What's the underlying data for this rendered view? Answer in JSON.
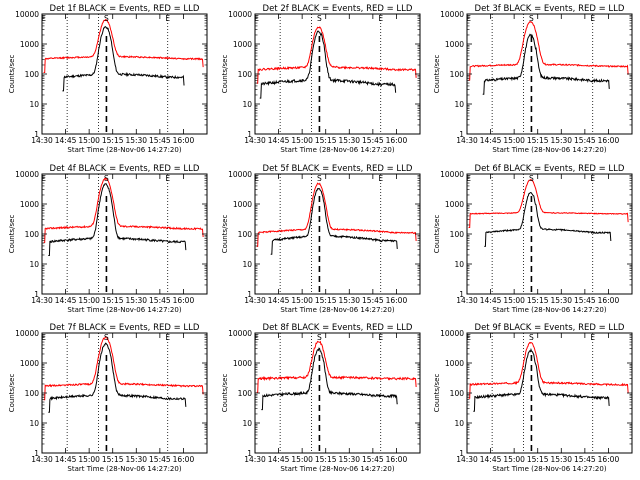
{
  "page": {
    "background": "#ffffff"
  },
  "colors": {
    "events": "#000000",
    "lld": "#ff0000",
    "axes": "#000000"
  },
  "chart_data": [
    {
      "type": "line",
      "title": "Det 1f BLACK = Events, RED = LLD",
      "xlabel": "Start Time (28-Nov-06 14:27:20)",
      "ylabel": "Counts/sec",
      "yscale": "log",
      "ylim": [
        1,
        10000
      ],
      "xlim": [
        870,
        975
      ],
      "xtick_labels": [
        "14:30",
        "14:45",
        "15:00",
        "15:15",
        "15:30",
        "15:45",
        "16:00"
      ],
      "xtick_values": [
        870,
        885,
        900,
        915,
        930,
        945,
        960
      ],
      "ytick_labels": [
        "1",
        "10",
        "100",
        "1000",
        "10000"
      ],
      "ytick_values": [
        1,
        10,
        100,
        1000,
        10000
      ],
      "dotted_lines_x": [
        886,
        906,
        950
      ],
      "dashed_line_x": 911,
      "marker_labels": [
        {
          "text": "S",
          "x": 911
        },
        {
          "text": "E",
          "x": 950
        },
        {
          "text": "E",
          "x": 871
        }
      ],
      "series": [
        {
          "name": "Events",
          "color": "#000000",
          "start": 883,
          "end": 961,
          "base": 78,
          "bump": 1.25,
          "peak": 3600,
          "peak_x": 910.5,
          "peak_w": 3.2,
          "spikes": [
            [
              912.4,
              250
            ],
            [
              913.8,
              200
            ]
          ],
          "decay": 0.45,
          "noise": 0.08,
          "seed": 11
        },
        {
          "name": "LLD",
          "color": "#ff0000",
          "start": 871,
          "end": 973,
          "base": 320,
          "bump": 1.18,
          "peak": 6000,
          "peak_x": 910.5,
          "peak_w": 3.6,
          "spikes": [],
          "decay": 0.12,
          "noise": 0.05,
          "seed": 12
        }
      ]
    },
    {
      "type": "line",
      "title": "Det 2f BLACK = Events, RED = LLD",
      "xlabel": "Start Time (28-Nov-06 14:27:20)",
      "ylabel": "Counts/sec",
      "yscale": "log",
      "ylim": [
        1,
        10000
      ],
      "xlim": [
        870,
        975
      ],
      "xtick_labels": [
        "14:30",
        "14:45",
        "15:00",
        "15:15",
        "15:30",
        "15:45",
        "16:00"
      ],
      "xtick_values": [
        870,
        885,
        900,
        915,
        930,
        945,
        960
      ],
      "ytick_labels": [
        "1",
        "10",
        "100",
        "1000",
        "10000"
      ],
      "ytick_values": [
        1,
        10,
        100,
        1000,
        10000
      ],
      "dotted_lines_x": [
        886,
        906,
        950
      ],
      "dashed_line_x": 911,
      "marker_labels": [
        {
          "text": "S",
          "x": 911
        },
        {
          "text": "E",
          "x": 950
        },
        {
          "text": "E",
          "x": 871
        }
      ],
      "series": [
        {
          "name": "Events",
          "color": "#000000",
          "start": 873,
          "end": 960,
          "base": 45,
          "bump": 1.4,
          "peak": 2600,
          "peak_x": 910.5,
          "peak_w": 3.0,
          "spikes": [
            [
              912.5,
              180
            ],
            [
              914,
              160
            ]
          ],
          "decay": 0.6,
          "noise": 0.1,
          "seed": 21
        },
        {
          "name": "LLD",
          "color": "#ff0000",
          "start": 871,
          "end": 973,
          "base": 140,
          "bump": 1.2,
          "peak": 3600,
          "peak_x": 910.5,
          "peak_w": 3.4,
          "spikes": [],
          "decay": 0.15,
          "noise": 0.07,
          "seed": 22
        }
      ]
    },
    {
      "type": "line",
      "title": "Det 3f BLACK = Events, RED = LLD",
      "xlabel": "Start Time (28-Nov-06 14:27:20)",
      "ylabel": "Counts/sec",
      "yscale": "log",
      "ylim": [
        1,
        10000
      ],
      "xlim": [
        870,
        975
      ],
      "xtick_labels": [
        "14:30",
        "14:45",
        "15:00",
        "15:15",
        "15:30",
        "15:45",
        "16:00"
      ],
      "xtick_values": [
        870,
        885,
        900,
        915,
        930,
        945,
        960
      ],
      "ytick_labels": [
        "1",
        "10",
        "100",
        "1000",
        "10000"
      ],
      "ytick_values": [
        1,
        10,
        100,
        1000,
        10000
      ],
      "dotted_lines_x": [
        886,
        906,
        950
      ],
      "dashed_line_x": 911,
      "marker_labels": [
        {
          "text": "S",
          "x": 911
        },
        {
          "text": "E",
          "x": 950
        },
        {
          "text": "E",
          "x": 871
        }
      ],
      "series": [
        {
          "name": "Events",
          "color": "#000000",
          "start": 880,
          "end": 961,
          "base": 60,
          "bump": 1.25,
          "peak": 1900,
          "peak_x": 910.5,
          "peak_w": 3.0,
          "spikes": [
            [
              912.5,
              150
            ],
            [
              914,
              130
            ]
          ],
          "decay": 0.55,
          "noise": 0.09,
          "seed": 31
        },
        {
          "name": "LLD",
          "color": "#ff0000",
          "start": 871,
          "end": 973,
          "base": 180,
          "bump": 1.15,
          "peak": 5400,
          "peak_x": 910.5,
          "peak_w": 3.6,
          "spikes": [],
          "decay": 0.15,
          "noise": 0.05,
          "seed": 32
        }
      ]
    },
    {
      "type": "line",
      "title": "Det 4f BLACK = Events, RED = LLD",
      "xlabel": "Start Time (28-Nov-06 14:27:20)",
      "ylabel": "Counts/sec",
      "yscale": "log",
      "ylim": [
        1,
        10000
      ],
      "xlim": [
        870,
        975
      ],
      "xtick_labels": [
        "14:30",
        "14:45",
        "15:00",
        "15:15",
        "15:30",
        "15:45",
        "16:00"
      ],
      "xtick_values": [
        870,
        885,
        900,
        915,
        930,
        945,
        960
      ],
      "ytick_labels": [
        "1",
        "10",
        "100",
        "1000",
        "10000"
      ],
      "ytick_values": [
        1,
        10,
        100,
        1000,
        10000
      ],
      "dotted_lines_x": [
        886,
        906,
        950
      ],
      "dashed_line_x": 911,
      "marker_labels": [
        {
          "text": "S",
          "x": 911
        },
        {
          "text": "E",
          "x": 950
        },
        {
          "text": "E",
          "x": 871
        }
      ],
      "series": [
        {
          "name": "Events",
          "color": "#000000",
          "start": 874,
          "end": 962,
          "base": 55,
          "bump": 1.3,
          "peak": 4500,
          "peak_x": 910.5,
          "peak_w": 3.2,
          "spikes": [
            [
              912.4,
              220
            ],
            [
              913.8,
              180
            ]
          ],
          "decay": 0.5,
          "noise": 0.08,
          "seed": 41
        },
        {
          "name": "LLD",
          "color": "#ff0000",
          "start": 871,
          "end": 973,
          "base": 150,
          "bump": 1.2,
          "peak": 6800,
          "peak_x": 910.5,
          "peak_w": 3.6,
          "spikes": [],
          "decay": 0.15,
          "noise": 0.06,
          "seed": 42
        }
      ]
    },
    {
      "type": "line",
      "title": "Det 5f BLACK = Events, RED = LLD",
      "xlabel": "Start Time (28-Nov-06 14:27:20)",
      "ylabel": "Counts/sec",
      "yscale": "log",
      "ylim": [
        1,
        10000
      ],
      "xlim": [
        870,
        975
      ],
      "xtick_labels": [
        "14:30",
        "14:45",
        "15:00",
        "15:15",
        "15:30",
        "15:45",
        "16:00"
      ],
      "xtick_values": [
        870,
        885,
        900,
        915,
        930,
        945,
        960
      ],
      "ytick_labels": [
        "1",
        "10",
        "100",
        "1000",
        "10000"
      ],
      "ytick_values": [
        1,
        10,
        100,
        1000,
        10000
      ],
      "dotted_lines_x": [
        886,
        906,
        950
      ],
      "dashed_line_x": 911,
      "marker_labels": [
        {
          "text": "S",
          "x": 911
        },
        {
          "text": "E",
          "x": 950
        },
        {
          "text": "E",
          "x": 871
        }
      ],
      "series": [
        {
          "name": "Events",
          "color": "#000000",
          "start": 880,
          "end": 961,
          "base": 60,
          "bump": 1.4,
          "peak": 3300,
          "peak_x": 910.5,
          "peak_w": 3.0,
          "spikes": [
            [
              912.5,
              160
            ],
            [
              914,
              150
            ]
          ],
          "decay": 0.55,
          "noise": 0.07,
          "seed": 51
        },
        {
          "name": "LLD",
          "color": "#ff0000",
          "start": 871,
          "end": 973,
          "base": 110,
          "bump": 1.3,
          "peak": 4700,
          "peak_x": 910.5,
          "peak_w": 3.4,
          "spikes": [],
          "decay": 0.12,
          "noise": 0.05,
          "seed": 52
        }
      ]
    },
    {
      "type": "line",
      "title": "Det 6f BLACK = Events, RED = LLD",
      "xlabel": "Start Time (28-Nov-06 14:27:20)",
      "ylabel": "Counts/sec",
      "yscale": "log",
      "ylim": [
        1,
        10000
      ],
      "xlim": [
        870,
        975
      ],
      "xtick_labels": [
        "14:30",
        "14:45",
        "15:00",
        "15:15",
        "15:30",
        "15:45",
        "16:00"
      ],
      "xtick_values": [
        870,
        885,
        900,
        915,
        930,
        945,
        960
      ],
      "ytick_labels": [
        "1",
        "10",
        "100",
        "1000",
        "10000"
      ],
      "ytick_values": [
        1,
        10,
        100,
        1000,
        10000
      ],
      "dotted_lines_x": [
        886,
        906,
        950
      ],
      "dashed_line_x": 911,
      "marker_labels": [
        {
          "text": "S",
          "x": 911
        },
        {
          "text": "E",
          "x": 950
        },
        {
          "text": "E",
          "x": 871
        }
      ],
      "series": [
        {
          "name": "Events",
          "color": "#000000",
          "start": 881,
          "end": 962,
          "base": 110,
          "bump": 1.3,
          "peak": 2300,
          "peak_x": 910.5,
          "peak_w": 3.0,
          "spikes": [
            [
              912.5,
              200
            ],
            [
              914,
              170
            ]
          ],
          "decay": 0.6,
          "noise": 0.05,
          "seed": 61
        },
        {
          "name": "LLD",
          "color": "#ff0000",
          "start": 871,
          "end": 973,
          "base": 470,
          "bump": 1.08,
          "peak": 6000,
          "peak_x": 910.5,
          "peak_w": 3.6,
          "spikes": [],
          "decay": 0.1,
          "noise": 0.03,
          "seed": 62
        }
      ]
    },
    {
      "type": "line",
      "title": "Det 7f BLACK = Events, RED = LLD",
      "xlabel": "Start Time (28-Nov-06 14:27:20)",
      "ylabel": "Counts/sec",
      "yscale": "log",
      "ylim": [
        1,
        10000
      ],
      "xlim": [
        870,
        975
      ],
      "xtick_labels": [
        "14:30",
        "14:45",
        "15:00",
        "15:15",
        "15:30",
        "15:45",
        "16:00"
      ],
      "xtick_values": [
        870,
        885,
        900,
        915,
        930,
        945,
        960
      ],
      "ytick_labels": [
        "1",
        "10",
        "100",
        "1000",
        "10000"
      ],
      "ytick_values": [
        1,
        10,
        100,
        1000,
        10000
      ],
      "dotted_lines_x": [
        886,
        906,
        950
      ],
      "dashed_line_x": 911,
      "marker_labels": [
        {
          "text": "S",
          "x": 911
        },
        {
          "text": "E",
          "x": 950
        },
        {
          "text": "E",
          "x": 871
        }
      ],
      "series": [
        {
          "name": "Events",
          "color": "#000000",
          "start": 874,
          "end": 962,
          "base": 65,
          "bump": 1.3,
          "peak": 4200,
          "peak_x": 910.5,
          "peak_w": 3.2,
          "spikes": [
            [
              912.4,
              220
            ],
            [
              913.8,
              190
            ]
          ],
          "decay": 0.5,
          "noise": 0.08,
          "seed": 71
        },
        {
          "name": "LLD",
          "color": "#ff0000",
          "start": 871,
          "end": 973,
          "base": 170,
          "bump": 1.18,
          "peak": 7000,
          "peak_x": 910.5,
          "peak_w": 3.6,
          "spikes": [],
          "decay": 0.15,
          "noise": 0.06,
          "seed": 72
        }
      ]
    },
    {
      "type": "line",
      "title": "Det 8f BLACK = Events, RED = LLD",
      "xlabel": "Start Time (28-Nov-06 14:27:20)",
      "ylabel": "Counts/sec",
      "yscale": "log",
      "ylim": [
        1,
        10000
      ],
      "xlim": [
        870,
        975
      ],
      "xtick_labels": [
        "14:30",
        "14:45",
        "15:00",
        "15:15",
        "15:30",
        "15:45",
        "16:00"
      ],
      "xtick_values": [
        870,
        885,
        900,
        915,
        930,
        945,
        960
      ],
      "ytick_labels": [
        "1",
        "10",
        "100",
        "1000",
        "10000"
      ],
      "ytick_values": [
        1,
        10,
        100,
        1000,
        10000
      ],
      "dotted_lines_x": [
        886,
        906,
        950
      ],
      "dashed_line_x": 911,
      "marker_labels": [
        {
          "text": "S",
          "x": 911
        },
        {
          "text": "E",
          "x": 950
        },
        {
          "text": "E",
          "x": 871
        }
      ],
      "series": [
        {
          "name": "Events",
          "color": "#000000",
          "start": 874,
          "end": 961,
          "base": 80,
          "bump": 1.25,
          "peak": 2800,
          "peak_x": 910.5,
          "peak_w": 3.0,
          "spikes": [
            [
              912.5,
              180
            ],
            [
              914,
              150
            ]
          ],
          "decay": 0.55,
          "noise": 0.09,
          "seed": 81
        },
        {
          "name": "LLD",
          "color": "#ff0000",
          "start": 871,
          "end": 973,
          "base": 300,
          "bump": 1.1,
          "peak": 5000,
          "peak_x": 910.5,
          "peak_w": 3.4,
          "spikes": [],
          "decay": 0.1,
          "noise": 0.08,
          "seed": 82
        }
      ]
    },
    {
      "type": "line",
      "title": "Det 9f BLACK = Events, RED = LLD",
      "xlabel": "Start Time (28-Nov-06 14:27:20)",
      "ylabel": "Counts/sec",
      "yscale": "log",
      "ylim": [
        1,
        10000
      ],
      "xlim": [
        870,
        975
      ],
      "xtick_labels": [
        "14:30",
        "14:45",
        "15:00",
        "15:15",
        "15:30",
        "15:45",
        "16:00"
      ],
      "xtick_values": [
        870,
        885,
        900,
        915,
        930,
        945,
        960
      ],
      "ytick_labels": [
        "1",
        "10",
        "100",
        "1000",
        "10000"
      ],
      "ytick_values": [
        1,
        10,
        100,
        1000,
        10000
      ],
      "dotted_lines_x": [
        886,
        906,
        950
      ],
      "dashed_line_x": 911,
      "marker_labels": [
        {
          "text": "S",
          "x": 911
        },
        {
          "text": "E",
          "x": 950
        },
        {
          "text": "E",
          "x": 871
        }
      ],
      "series": [
        {
          "name": "Events",
          "color": "#000000",
          "start": 874,
          "end": 961,
          "base": 70,
          "bump": 1.3,
          "peak": 2500,
          "peak_x": 910.5,
          "peak_w": 3.0,
          "spikes": [
            [
              912.5,
              170
            ],
            [
              914,
              160
            ]
          ],
          "decay": 0.55,
          "noise": 0.09,
          "seed": 91
        },
        {
          "name": "LLD",
          "color": "#ff0000",
          "start": 871,
          "end": 973,
          "base": 190,
          "bump": 1.15,
          "peak": 4600,
          "peak_x": 910.5,
          "peak_w": 3.4,
          "spikes": [],
          "decay": 0.12,
          "noise": 0.06,
          "seed": 92
        }
      ]
    }
  ]
}
